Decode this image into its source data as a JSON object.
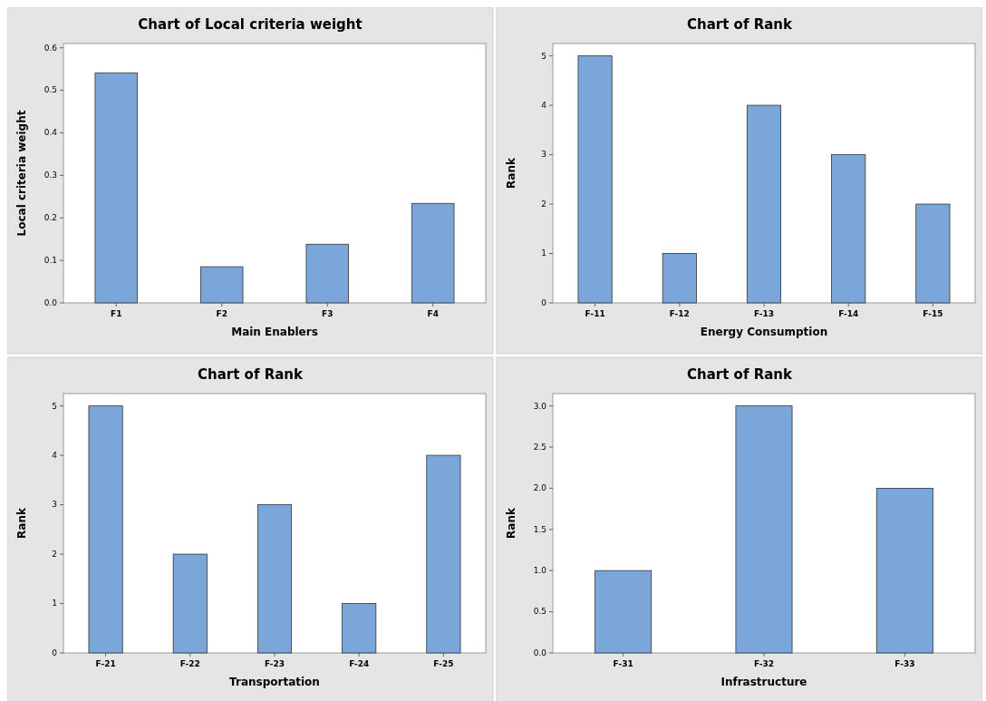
{
  "chart_data": [
    {
      "type": "bar",
      "title": "Chart of Local criteria weight",
      "xlabel": "Main Enablers",
      "ylabel": "Local criteria weight",
      "categories": [
        "F1",
        "F2",
        "F3",
        "F4"
      ],
      "values": [
        0.541,
        0.085,
        0.138,
        0.234
      ],
      "color": "#7ba6d9",
      "ylim": [
        0,
        0.61
      ],
      "yticks": [
        {
          "value": 0,
          "label": "0.0"
        },
        0.1,
        0.2,
        0.3,
        0.4,
        0.5,
        0.6
      ],
      "grid": false
    },
    {
      "type": "bar",
      "title": "Chart of Rank",
      "xlabel": "Energy Consumption",
      "ylabel": "Rank",
      "categories": [
        "F-11",
        "F-12",
        "F-13",
        "F-14",
        "F-15"
      ],
      "values": [
        5,
        1,
        4,
        3,
        2
      ],
      "color": "#7ba6d9",
      "ylim": [
        0,
        5.25
      ],
      "yticks": [
        0,
        1,
        2,
        3,
        4,
        5
      ],
      "grid": false
    },
    {
      "type": "bar",
      "title": "Chart of Rank",
      "xlabel": "Transportation",
      "ylabel": "Rank",
      "categories": [
        "F-21",
        "F-22",
        "F-23",
        "F-24",
        "F-25"
      ],
      "values": [
        5,
        2,
        3,
        1,
        4
      ],
      "color": "#7ba6d9",
      "ylim": [
        0,
        5.25
      ],
      "yticks": [
        0,
        1,
        2,
        3,
        4,
        5
      ],
      "grid": false
    },
    {
      "type": "bar",
      "title": "Chart of Rank",
      "xlabel": "Infrastructure",
      "ylabel": "Rank",
      "categories": [
        "F-31",
        "F-32",
        "F-33"
      ],
      "values": [
        1,
        3,
        2
      ],
      "color": "#7ba6d9",
      "ylim": [
        0,
        3.15
      ],
      "yticks": [
        {
          "value": 0,
          "label": "0.0"
        },
        {
          "value": 0.5,
          "label": "0.5"
        },
        {
          "value": 1,
          "label": "1.0"
        },
        {
          "value": 1.5,
          "label": "1.5"
        },
        {
          "value": 2,
          "label": "2.0"
        },
        {
          "value": 2.5,
          "label": "2.5"
        },
        {
          "value": 3,
          "label": "3.0"
        }
      ],
      "grid": false
    }
  ]
}
